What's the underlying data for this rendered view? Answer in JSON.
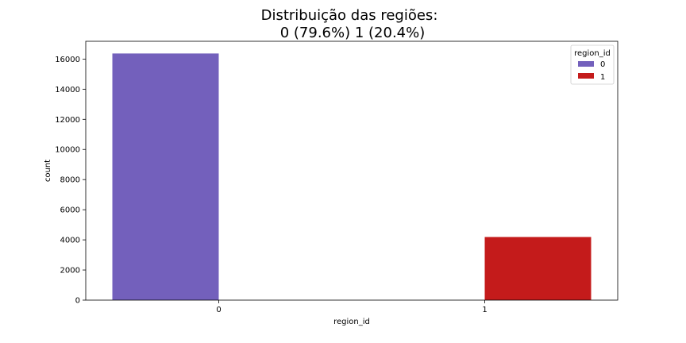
{
  "chart_data": {
    "type": "bar",
    "title": "Distribuição das regiões:\n 0 (79.6%) 1 (20.4%)",
    "title_lines": [
      "Distribuição das regiões:",
      "0 (79.6%) 1 (20.4%)"
    ],
    "xlabel": "region_id",
    "ylabel": "count",
    "categories": [
      "0",
      "1"
    ],
    "series": [
      {
        "name": "0",
        "color": "#7360bc",
        "values": [
          16370,
          null
        ]
      },
      {
        "name": "1",
        "color": "#c41b1b",
        "values": [
          null,
          4190
        ]
      }
    ],
    "ylim": [
      0,
      17180
    ],
    "yticks": [
      0,
      2000,
      4000,
      6000,
      8000,
      10000,
      12000,
      14000,
      16000
    ],
    "legend": {
      "title": "region_id",
      "placement": "top-right"
    },
    "grid": false
  }
}
